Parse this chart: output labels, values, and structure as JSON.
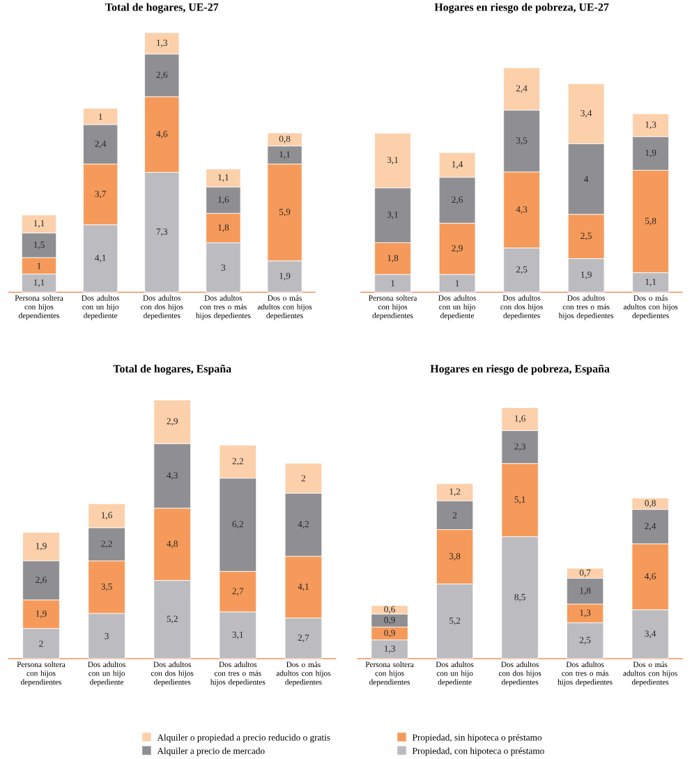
{
  "chart_data": [
    {
      "type": "bar",
      "title": "Total de hogares, UE-27",
      "stacked": true,
      "categories": [
        "Persona soltera con hijos dependientes",
        "Dos adultos con un hijo depediente",
        "Dos adultos con dos hijos depedientes",
        "Dos adultos con tres o más hijos depedientes",
        "Dos o más adultos con hijos depedientes"
      ],
      "series": [
        {
          "color": "#bcbcc0",
          "values": [
            1.1,
            4.1,
            7.3,
            3,
            1.9
          ],
          "value_labels": [
            "1,1",
            "4,1",
            "7,3",
            "3",
            "1,9"
          ]
        },
        {
          "color": "#f59a5a",
          "values": [
            1,
            3.7,
            4.6,
            1.8,
            5.9
          ],
          "value_labels": [
            "1",
            "3,7",
            "4,6",
            "1,8",
            "5,9"
          ]
        },
        {
          "color": "#8f8f93",
          "values": [
            1.5,
            2.4,
            2.6,
            1.6,
            1.1
          ],
          "value_labels": [
            "1,5",
            "2,4",
            "2,6",
            "1,6",
            "1,1"
          ]
        },
        {
          "color": "#fcd0ab",
          "values": [
            1.1,
            1,
            1.3,
            1.1,
            0.8
          ],
          "value_labels": [
            "1,1",
            "1",
            "1,3",
            "1,1",
            "0,8"
          ]
        }
      ]
    },
    {
      "type": "bar",
      "title": "Hogares en riesgo de pobreza, UE-27",
      "stacked": true,
      "categories": [
        "Persona soltera con hijos dependientes",
        "Dos adultos con un hijo depediente",
        "Dos adultos con dos hijos depedientes",
        "Dos adultos con tres o más hijos depedientes",
        "Dos o más adultos con hijos depedientes"
      ],
      "series": [
        {
          "color": "#bcbcc0",
          "values": [
            1,
            1,
            2.5,
            1.9,
            1.1
          ],
          "value_labels": [
            "1",
            "1",
            "2,5",
            "1,9",
            "1,1"
          ]
        },
        {
          "color": "#f59a5a",
          "values": [
            1.8,
            2.9,
            4.3,
            2.5,
            5.8
          ],
          "value_labels": [
            "1,8",
            "2,9",
            "4,3",
            "2,5",
            "5,8"
          ]
        },
        {
          "color": "#8f8f93",
          "values": [
            3.1,
            2.6,
            3.5,
            4,
            1.9
          ],
          "value_labels": [
            "3,1",
            "2,6",
            "3,5",
            "4",
            "1,9"
          ]
        },
        {
          "color": "#fcd0ab",
          "values": [
            3.1,
            1.4,
            2.4,
            3.4,
            1.3
          ],
          "value_labels": [
            "3,1",
            "1,4",
            "2,4",
            "3,4",
            "1,3"
          ]
        }
      ]
    },
    {
      "type": "bar",
      "title": "Total de hogares, España",
      "stacked": true,
      "categories": [
        "Persona soltera con hijos dependientes",
        "Dos adultos con un hijo depediente",
        "Dos adultos con dos hijos depedientes",
        "Dos adultos con tres o más hijos depedientes",
        "Dos o más adultos con hijos depedientes"
      ],
      "series": [
        {
          "color": "#bcbcc0",
          "values": [
            2,
            3,
            5.2,
            3.1,
            2.7
          ],
          "value_labels": [
            "2",
            "3",
            "5,2",
            "3,1",
            "2,7"
          ]
        },
        {
          "color": "#f59a5a",
          "values": [
            1.9,
            3.5,
            4.8,
            2.7,
            4.1
          ],
          "value_labels": [
            "1,9",
            "3,5",
            "4,8",
            "2,7",
            "4,1"
          ]
        },
        {
          "color": "#8f8f93",
          "values": [
            2.6,
            2.2,
            4.3,
            6.2,
            4.2
          ],
          "value_labels": [
            "2,6",
            "2,2",
            "4,3",
            "6,2",
            "4,2"
          ]
        },
        {
          "color": "#fcd0ab",
          "values": [
            1.9,
            1.6,
            2.9,
            2.2,
            2
          ],
          "value_labels": [
            "1,9",
            "1,6",
            "2,9",
            "2,2",
            "2"
          ]
        }
      ]
    },
    {
      "type": "bar",
      "title": "Hogares en riesgo de pobreza, España",
      "stacked": true,
      "legend": "bottom",
      "categories": [
        "Persona soltera con hijos dependientes",
        "Dos adultos con un hijo depediente",
        "Dos adultos con dos hijos depedientes",
        "Dos adultos con tres o más hijos depedientes",
        "Dos o más adultos con hijos depedientes"
      ],
      "series": [
        {
          "name": "Propiedad,  con hipoteca o préstamo",
          "color": "#bcbcc0",
          "values": [
            1.3,
            5.2,
            8.5,
            2.5,
            3.4
          ],
          "value_labels": [
            "1,3",
            "5,2",
            "8,5",
            "2,5",
            "3,4"
          ]
        },
        {
          "name": "Propiedad, sin hipoteca o préstamo",
          "color": "#f59a5a",
          "values": [
            0.9,
            3.8,
            5.1,
            1.3,
            4.6
          ],
          "value_labels": [
            "0,9",
            "3,8",
            "5,1",
            "1,3",
            "4,6"
          ]
        },
        {
          "name": "Alquiler a precio de mercado",
          "color": "#8f8f93",
          "values": [
            0.9,
            2,
            2.3,
            1.8,
            2.4
          ],
          "value_labels": [
            "0,9",
            "2",
            "2,3",
            "1,8",
            "2,4"
          ]
        },
        {
          "name": "Alquiler o propiedad a precio reducido o gratis",
          "color": "#fcd0ab",
          "values": [
            0.6,
            1.2,
            1.6,
            0.7,
            0.8
          ],
          "value_labels": [
            "0,6",
            "1,2",
            "1,6",
            "0,7",
            "0,8"
          ]
        }
      ]
    }
  ]
}
